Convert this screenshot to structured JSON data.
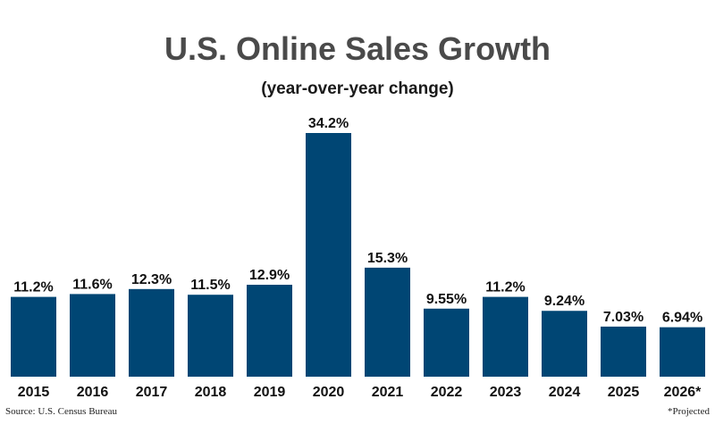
{
  "chart_data": {
    "type": "bar",
    "title": "U.S. Online Sales Growth",
    "subtitle": "(year-over-year change)",
    "categories": [
      "2015",
      "2016",
      "2017",
      "2018",
      "2019",
      "2020",
      "2021",
      "2022",
      "2023",
      "2024",
      "2025",
      "2026*"
    ],
    "values": [
      11.2,
      11.6,
      12.3,
      11.5,
      12.9,
      34.2,
      15.3,
      9.55,
      11.2,
      9.24,
      7.03,
      6.94
    ],
    "value_labels": [
      "11.2%",
      "11.6%",
      "12.3%",
      "11.5%",
      "12.9%",
      "34.2%",
      "15.3%",
      "9.55%",
      "11.2%",
      "9.24%",
      "7.03%",
      "6.94%"
    ],
    "xlabel": "",
    "ylabel": "",
    "ylim": [
      0,
      34.2
    ],
    "grid": false,
    "bar_color": "#004674"
  },
  "footer": {
    "source": "Source: U.S. Census Bureau",
    "note": "*Projected"
  }
}
